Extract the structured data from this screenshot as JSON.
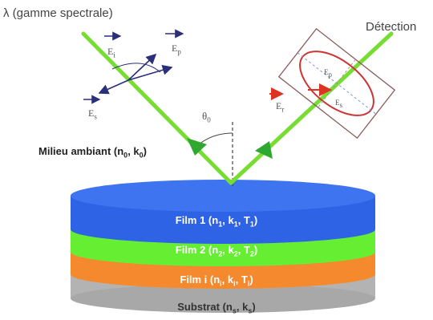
{
  "labels": {
    "lambda": "λ (gamme spectrale)",
    "detection": "Détection",
    "ambient": "Milieu ambiant (n",
    "ambient_sub0": "0",
    "ambient_mid": ", k",
    "ambient_sub1": "0",
    "ambient_end": ")",
    "theta": "θ",
    "theta_sub": "0"
  },
  "field_vectors": {
    "ei": "E",
    "ei_sub": "i",
    "ep": "E",
    "ep_sub": "p",
    "es": "E",
    "es_sub": "s",
    "er": "E",
    "er_sub": "r",
    "ellipse_p": "E",
    "ellipse_p_sub": "p",
    "ellipse_s": "E",
    "ellipse_s_sub": "s"
  },
  "layers": [
    {
      "pre": "Film 1 (n",
      "s1": "1",
      "m1": ", k",
      "s2": "1",
      "m2": ", T",
      "s3": "1",
      "end": ")",
      "color": "#2f63e6"
    },
    {
      "pre": "Film 2 (n",
      "s1": "2",
      "m1": ", k",
      "s2": "2",
      "m2": ", T",
      "s3": "2",
      "end": ")",
      "color": "#66ee33"
    },
    {
      "pre": "Film i (n",
      "s1": "i",
      "m1": ", k",
      "s2": "i",
      "m2": ", T",
      "s3": "i",
      "end": ")",
      "color": "#f5892e"
    },
    {
      "pre": "Substrat (n",
      "s1": "s",
      "m1": ", k",
      "s2": "s",
      "m2": "",
      "s3": "",
      "end": ")",
      "color": "#bdbdbd"
    }
  ],
  "colors": {
    "beam": "#77dd33",
    "beam_arrow": "#2fa82f",
    "vector": "#2a2f7a",
    "incident_red": "#dd3322",
    "ellipse": "#cc3333",
    "ellipse_box": "#8a5a5a"
  }
}
